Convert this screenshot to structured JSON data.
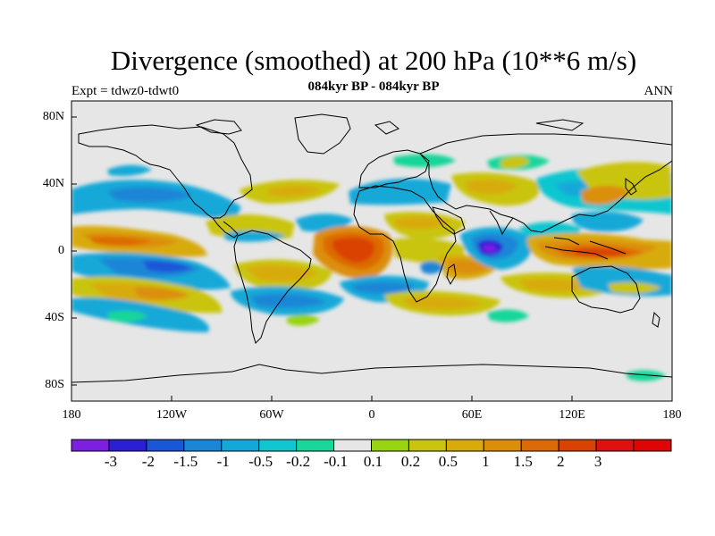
{
  "title": "Divergence (smoothed) at 200 hPa (10**6 m/s)",
  "subtitle": "084kyr BP - 084kyr BP",
  "experiment_label": "Expt = tdwz0-tdwt0",
  "season_label": "ANN",
  "y_axis_labels": [
    "80N",
    "40N",
    "0",
    "40S",
    "80S"
  ],
  "x_axis_labels": [
    "180",
    "120W",
    "60W",
    "0",
    "60E",
    "120E",
    "180"
  ],
  "colorbar": {
    "colors": [
      "#7d1fe0",
      "#2b1fd6",
      "#1a56d8",
      "#1a86d6",
      "#12a9d8",
      "#10c6d0",
      "#19d69a",
      "#e6e6e6",
      "#98d40f",
      "#c9c40e",
      "#d8ab0a",
      "#dc8e08",
      "#dc6a06",
      "#da4203",
      "#de1010",
      "#e00505"
    ],
    "labels": [
      "-3",
      "-2",
      "-1.5",
      "-1",
      "-0.5",
      "-0.2",
      "-0.1",
      "0.1",
      "0.2",
      "0.5",
      "1",
      "1.5",
      "2",
      "3"
    ]
  }
}
